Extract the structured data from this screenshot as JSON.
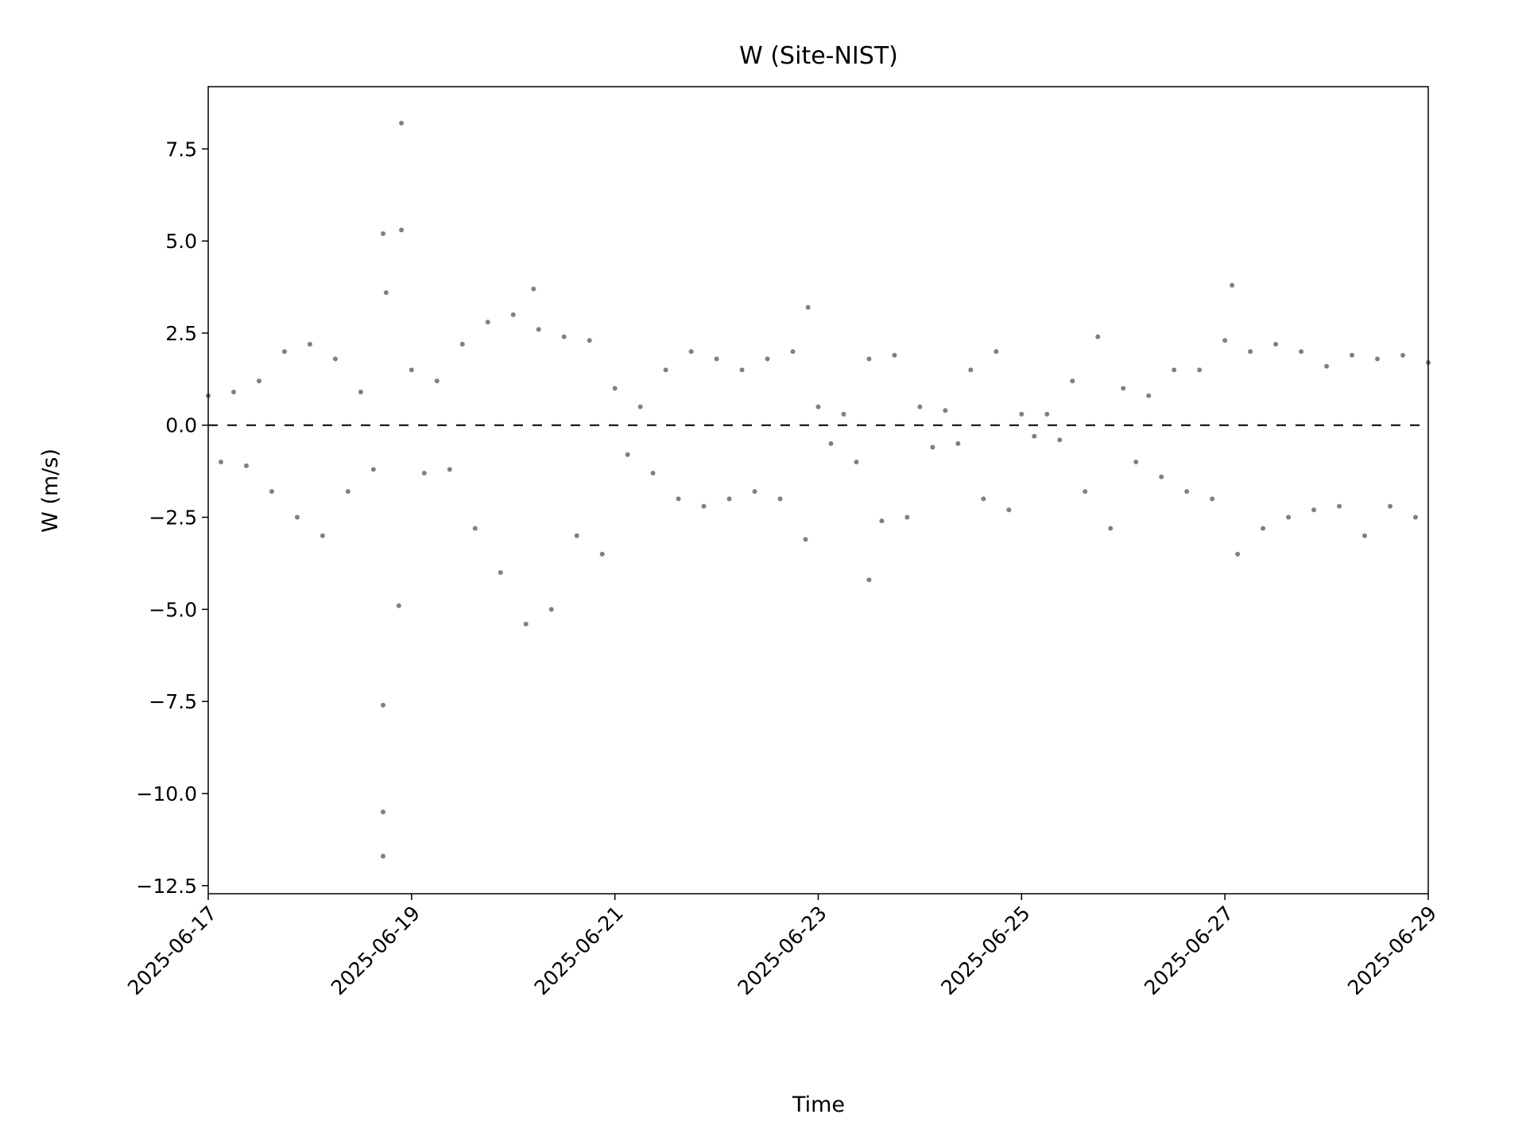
{
  "chart_data": {
    "type": "scatter",
    "title": "W (Site-NIST)",
    "xlabel": "Time",
    "ylabel": "W (m/s)",
    "color": "#808080",
    "x": [
      0,
      0.125,
      0.25,
      0.375,
      0.5,
      0.625,
      0.75,
      0.875,
      1,
      1.125,
      1.25,
      1.375,
      1.5,
      1.625,
      1.75,
      1.875,
      2,
      2.125,
      2.25,
      2.375,
      2.5,
      2.625,
      2.75,
      2.875,
      3,
      3.125,
      3.25,
      3.375,
      3.5,
      3.625,
      3.75,
      3.875,
      4,
      4.125,
      4.25,
      4.375,
      4.5,
      4.625,
      4.75,
      4.875,
      5,
      5.125,
      5.25,
      5.375,
      5.5,
      5.625,
      5.75,
      5.875,
      6,
      6.125,
      6.25,
      6.375,
      6.5,
      6.625,
      6.75,
      6.875,
      7,
      7.125,
      7.25,
      7.375,
      7.5,
      7.625,
      7.75,
      7.875,
      8,
      8.125,
      8.25,
      8.375,
      8.5,
      8.625,
      8.75,
      8.875,
      9,
      9.125,
      9.25,
      9.375,
      9.5,
      9.625,
      9.75,
      9.875,
      10,
      10.125,
      10.25,
      10.375,
      10.5,
      10.625,
      10.75,
      10.875,
      11,
      11.125,
      11.25,
      11.375,
      11.5,
      11.625,
      11.75,
      11.875,
      12,
      1.72,
      1.72,
      1.72,
      1.72,
      1.9,
      1.9,
      3.2,
      10.07,
      6.5,
      5.9
    ],
    "values": [
      0.8,
      -1.0,
      0.9,
      -1.1,
      1.2,
      -1.8,
      2.0,
      -2.5,
      2.2,
      -3.0,
      1.8,
      -1.8,
      0.9,
      -1.2,
      3.6,
      -4.9,
      1.5,
      -1.3,
      1.2,
      -1.2,
      2.2,
      -2.8,
      2.8,
      -4.0,
      3.0,
      -5.4,
      2.6,
      -5.0,
      2.4,
      -3.0,
      2.3,
      -3.5,
      1.0,
      -0.8,
      0.5,
      -1.3,
      1.5,
      -2.0,
      2.0,
      -2.2,
      1.8,
      -2.0,
      1.5,
      -1.8,
      1.8,
      -2.0,
      2.0,
      -3.1,
      0.5,
      -0.5,
      0.3,
      -1.0,
      1.8,
      -2.6,
      1.9,
      -2.5,
      0.5,
      -0.6,
      0.4,
      -0.5,
      1.5,
      -2.0,
      2.0,
      -2.3,
      0.3,
      -0.3,
      0.3,
      -0.4,
      1.2,
      -1.8,
      2.4,
      -2.8,
      1.0,
      -1.0,
      0.8,
      -1.4,
      1.5,
      -1.8,
      1.5,
      -2.0,
      2.3,
      -3.5,
      2.0,
      -2.8,
      2.2,
      -2.5,
      2.0,
      -2.3,
      1.6,
      -2.2,
      1.9,
      -3.0,
      1.8,
      -2.2,
      1.9,
      -2.5,
      1.7,
      -11.7,
      -10.5,
      -7.6,
      5.2,
      8.2,
      5.3,
      3.7,
      3.8,
      -4.2,
      3.2
    ],
    "xlim": [
      0,
      12
    ],
    "xticks": [
      {
        "value": 0,
        "label": "2025-06-17"
      },
      {
        "value": 2,
        "label": "2025-06-19"
      },
      {
        "value": 4,
        "label": "2025-06-21"
      },
      {
        "value": 6,
        "label": "2025-06-23"
      },
      {
        "value": 8,
        "label": "2025-06-25"
      },
      {
        "value": 10,
        "label": "2025-06-27"
      },
      {
        "value": 12,
        "label": "2025-06-29"
      }
    ],
    "ylim": [
      -12.72,
      9.19
    ],
    "yticks": [
      {
        "value": -12.5,
        "label": "−12.5"
      },
      {
        "value": -10,
        "label": "−10.0"
      },
      {
        "value": -7.5,
        "label": "−7.5"
      },
      {
        "value": -5,
        "label": "−5.0"
      },
      {
        "value": -2.5,
        "label": "−2.5"
      },
      {
        "value": 0,
        "label": "0.0"
      },
      2.5,
      {
        "value": 5,
        "label": "5.0"
      },
      7.5
    ],
    "reference_line": {
      "y": 0,
      "color": "#000000",
      "dashed": true
    },
    "grid": false
  }
}
